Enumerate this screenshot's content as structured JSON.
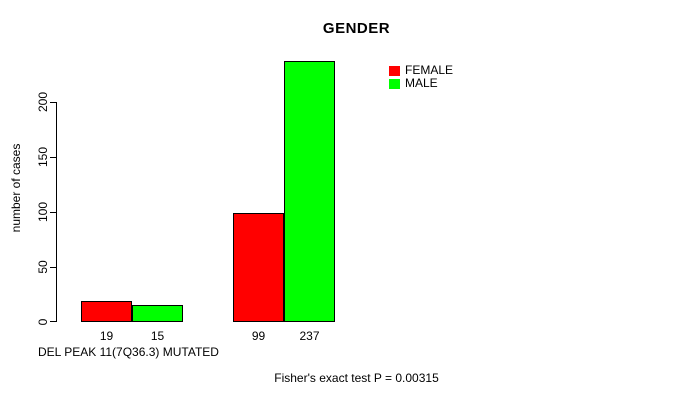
{
  "chart_data": {
    "type": "bar",
    "title": "GENDER",
    "ylabel": "number of cases",
    "xlabel": "DEL PEAK 11(7Q36.3) MUTATED",
    "annotation": "Fisher's exact test P = 0.00315",
    "series": [
      {
        "name": "FEMALE",
        "color": "#FF0000",
        "values": [
          19,
          99
        ]
      },
      {
        "name": "MALE",
        "color": "#00FF00",
        "values": [
          15,
          237
        ]
      }
    ],
    "bar_value_labels": [
      "19",
      "15",
      "99",
      "237"
    ],
    "yticks": [
      0,
      50,
      100,
      150,
      200
    ],
    "ylim": [
      0,
      240
    ],
    "legend_position": "top-right",
    "grid": false,
    "bar_border_color": "#000000",
    "axis_color": "#000000",
    "text_color": "#000000",
    "background_color": "#FFFFFF"
  }
}
